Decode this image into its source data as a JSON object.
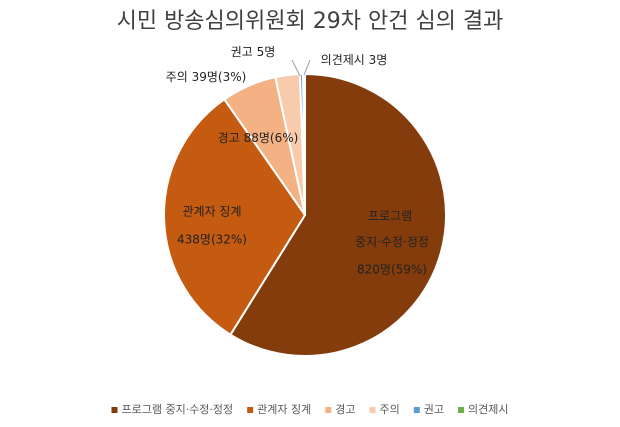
{
  "chart_data": {
    "type": "pie",
    "title": "시민 방송심의위원회 29차 안건 심의 결과",
    "categories": [
      "프로그램 중지·수정·정정",
      "관계자 징계",
      "경고",
      "주의",
      "권고",
      "의견제시"
    ],
    "values": [
      820,
      438,
      88,
      39,
      5,
      3
    ],
    "value_labels": [
      "820명(59%)",
      "438명(32%)",
      "88명(6%)",
      "39명(3%)",
      "5명",
      "3명"
    ],
    "colors": [
      "#843c0c",
      "#c55a11",
      "#f4b183",
      "#f8cbad",
      "#5b9bd5",
      "#70ad47"
    ],
    "legend": "bottom"
  }
}
